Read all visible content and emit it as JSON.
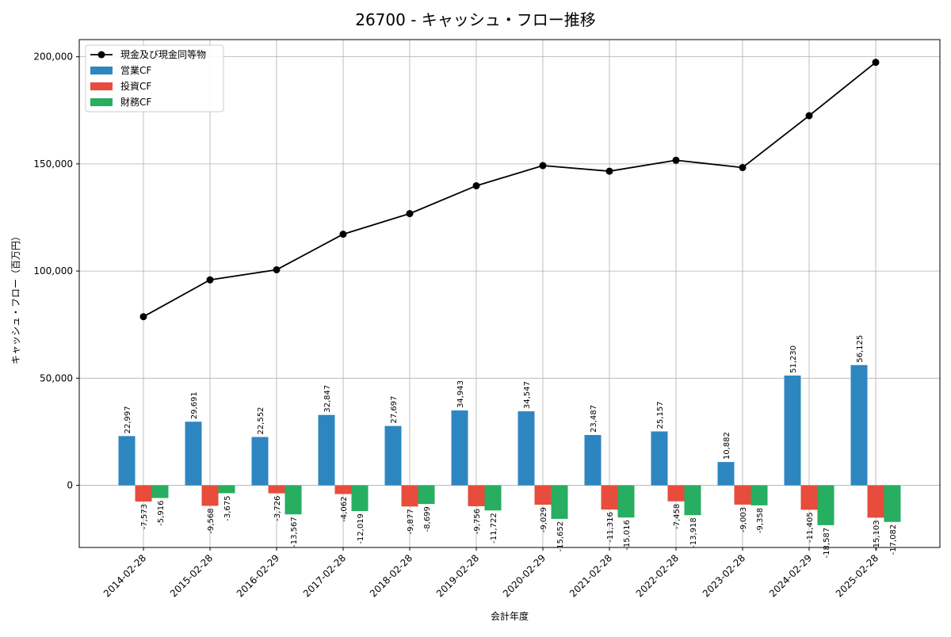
{
  "chart_data": {
    "type": "bar",
    "title": "26700 - キャッシュ・フロー推移",
    "xlabel": "会計年度",
    "ylabel": "キャッシュ・フロー（百万円）",
    "categories": [
      "2014-02-28",
      "2015-02-28",
      "2016-02-29",
      "2017-02-28",
      "2018-02-28",
      "2019-02-28",
      "2020-02-29",
      "2021-02-28",
      "2022-02-28",
      "2023-02-28",
      "2024-02-29",
      "2025-02-28"
    ],
    "ylim": [
      -29000,
      208000
    ],
    "yticks": [
      0,
      50000,
      100000,
      150000,
      200000
    ],
    "ytick_labels": [
      "0",
      "50,000",
      "100,000",
      "150,000",
      "200,000"
    ],
    "grid": true,
    "legend_position": "top-left",
    "series": [
      {
        "name": "営業CF",
        "kind": "bar",
        "color": "#2e86c1",
        "values": [
          22997,
          29691,
          22552,
          32847,
          27697,
          34943,
          34547,
          23487,
          25157,
          10882,
          51230,
          56125
        ],
        "labels": [
          "22,997",
          "29,691",
          "22,552",
          "32,847",
          "27,697",
          "34,943",
          "34,547",
          "23,487",
          "25,157",
          "10,882",
          "51,230",
          "56,125"
        ]
      },
      {
        "name": "投資CF",
        "kind": "bar",
        "color": "#e74c3c",
        "values": [
          -7573,
          -9568,
          -3726,
          -4062,
          -9877,
          -9756,
          -9029,
          -11316,
          -7458,
          -9003,
          -11405,
          -15103
        ],
        "labels": [
          "-7,573",
          "-9,568",
          "-3,726",
          "-4,062",
          "-9,877",
          "-9,756",
          "-9,029",
          "-11,316",
          "-7,458",
          "-9,003",
          "-11,405",
          "-15,103"
        ]
      },
      {
        "name": "財務CF",
        "kind": "bar",
        "color": "#27ae60",
        "values": [
          -5916,
          -3675,
          -13567,
          -12019,
          -8699,
          -11722,
          -15652,
          -15016,
          -13918,
          -9358,
          -18587,
          -17082
        ],
        "labels": [
          "-5,916",
          "-3,675",
          "-13,567",
          "-12,019",
          "-8,699",
          "-11,722",
          "-15,652",
          "-15,016",
          "-13,918",
          "-9,358",
          "-18,587",
          "-17,082"
        ]
      },
      {
        "name": "現金及び現金同等物",
        "kind": "line",
        "color": "#000000",
        "values": [
          78700,
          95900,
          100600,
          117200,
          126800,
          139800,
          149200,
          146600,
          151700,
          148300,
          172500,
          197400
        ]
      }
    ]
  }
}
